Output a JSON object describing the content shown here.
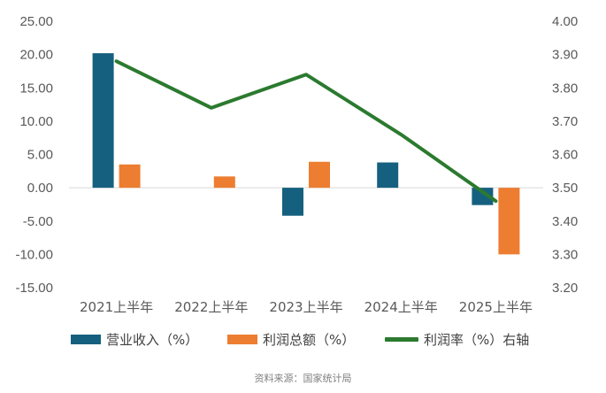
{
  "chart_data": {
    "type": "bar",
    "categories": [
      "2021上半年",
      "2022上半年",
      "2023上半年",
      "2024上半年",
      "2025上半年"
    ],
    "series": [
      {
        "name": "营业收入（%）",
        "type": "bar",
        "axis": "left",
        "color": "#16607f",
        "values": [
          20.2,
          null,
          -4.2,
          3.8,
          -2.6
        ]
      },
      {
        "name": "利润总额（%）",
        "type": "bar",
        "axis": "left",
        "color": "#ed7d31",
        "values": [
          3.5,
          1.7,
          3.9,
          null,
          -10.0
        ]
      },
      {
        "name": "利润率（%）右轴",
        "type": "line",
        "axis": "right",
        "color": "#2b7a2f",
        "values": [
          3.88,
          3.74,
          3.84,
          3.66,
          3.46
        ]
      }
    ],
    "y_left": {
      "min": -15,
      "max": 25,
      "step": 5,
      "ticks": [
        "25.00",
        "20.00",
        "15.00",
        "10.00",
        "5.00",
        "0.00",
        "-5.00",
        "-10.00",
        "-15.00"
      ]
    },
    "y_right": {
      "min": 3.2,
      "max": 4.0,
      "step": 0.1,
      "ticks": [
        "4.00",
        "3.90",
        "3.80",
        "3.70",
        "3.60",
        "3.50",
        "3.40",
        "3.30",
        "3.20"
      ]
    },
    "grid": false,
    "legend_position": "bottom"
  },
  "legend": {
    "revenue": "营业收入（%）",
    "profit": "利润总额（%）",
    "margin": "利润率（%）右轴"
  },
  "source": "资料来源：国家统计局",
  "colors": {
    "revenue": "#16607f",
    "profit": "#ed7d31",
    "margin": "#2b7a2f"
  }
}
